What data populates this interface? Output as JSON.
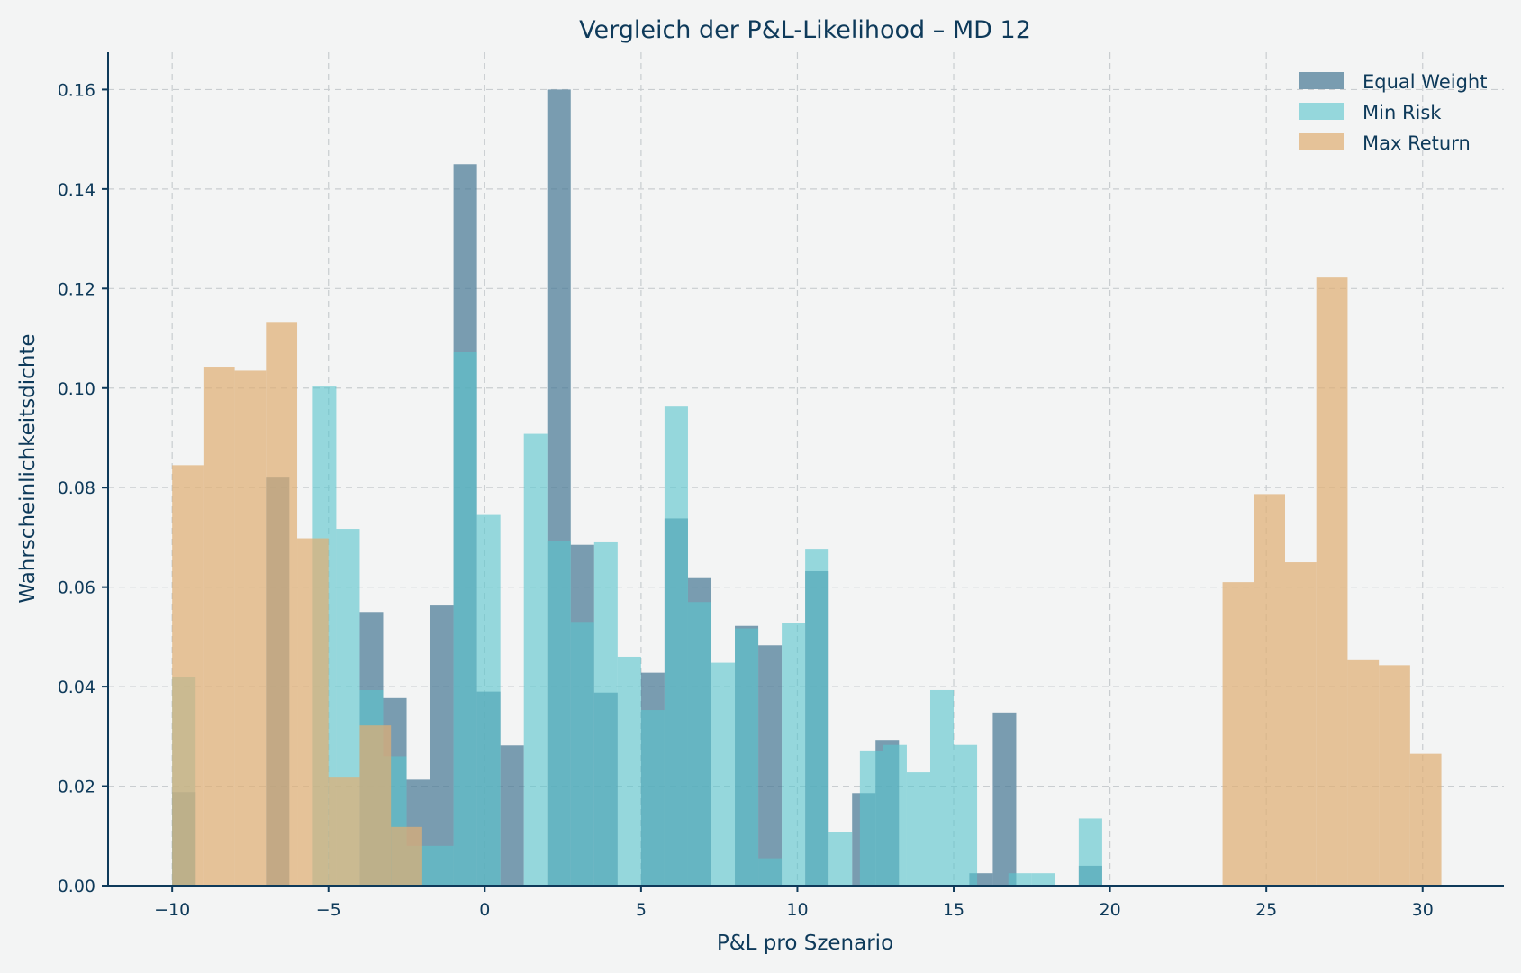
{
  "chart_data": {
    "type": "bar",
    "title": "Vergleich der P&L-Likelihood – MD 12",
    "xlabel": "P&L pro Szenario",
    "ylabel": "Wahrscheinlichkeitsdichte",
    "xlim": [
      -12.05,
      32.6
    ],
    "ylim": [
      0,
      0.1675
    ],
    "xticks": [
      -10,
      -5,
      0,
      5,
      10,
      15,
      20,
      25,
      30
    ],
    "xtick_labels": [
      "−10",
      "−5",
      "0",
      "5",
      "10",
      "15",
      "20",
      "25",
      "30"
    ],
    "yticks": [
      0,
      0.02,
      0.04,
      0.06,
      0.08,
      0.1,
      0.12,
      0.14,
      0.16
    ],
    "ytick_labels": [
      "0.00",
      "0.02",
      "0.04",
      "0.06",
      "0.08",
      "0.10",
      "0.12",
      "0.14",
      "0.16"
    ],
    "grid": true,
    "legend_position": "top-right",
    "series": [
      {
        "name": "Equal Weight",
        "color": "#4a7a96",
        "opacity": 0.72,
        "bins": [
          {
            "x0": -10.0,
            "x1": -9.25,
            "y": 0.0188
          },
          {
            "x0": -7.0,
            "x1": -6.25,
            "y": 0.082
          },
          {
            "x0": -4.0,
            "x1": -3.25,
            "y": 0.055
          },
          {
            "x0": -3.25,
            "x1": -2.5,
            "y": 0.0377
          },
          {
            "x0": -2.5,
            "x1": -1.75,
            "y": 0.0213
          },
          {
            "x0": -1.75,
            "x1": -1.0,
            "y": 0.0563
          },
          {
            "x0": -1.0,
            "x1": -0.25,
            "y": 0.145
          },
          {
            "x0": -0.25,
            "x1": 0.5,
            "y": 0.039
          },
          {
            "x0": 0.5,
            "x1": 1.25,
            "y": 0.0282
          },
          {
            "x0": 2.0,
            "x1": 2.75,
            "y": 0.16
          },
          {
            "x0": 2.75,
            "x1": 3.5,
            "y": 0.0685
          },
          {
            "x0": 3.5,
            "x1": 4.25,
            "y": 0.0388
          },
          {
            "x0": 5.0,
            "x1": 5.75,
            "y": 0.0428
          },
          {
            "x0": 5.75,
            "x1": 6.5,
            "y": 0.0738
          },
          {
            "x0": 6.5,
            "x1": 7.25,
            "y": 0.0618
          },
          {
            "x0": 8.0,
            "x1": 8.75,
            "y": 0.0522
          },
          {
            "x0": 8.75,
            "x1": 9.5,
            "y": 0.0483
          },
          {
            "x0": 10.25,
            "x1": 11.0,
            "y": 0.0632
          },
          {
            "x0": 11.75,
            "x1": 12.5,
            "y": 0.0186
          },
          {
            "x0": 12.5,
            "x1": 13.25,
            "y": 0.0293
          },
          {
            "x0": 15.5,
            "x1": 16.25,
            "y": 0.0025
          },
          {
            "x0": 16.25,
            "x1": 17.0,
            "y": 0.0348
          },
          {
            "x0": 19.0,
            "x1": 19.75,
            "y": 0.004
          }
        ]
      },
      {
        "name": "Min Risk",
        "color": "#5ac5cd",
        "opacity": 0.62,
        "bins": [
          {
            "x0": -10.0,
            "x1": -9.25,
            "y": 0.042
          },
          {
            "x0": -5.5,
            "x1": -4.75,
            "y": 0.1003
          },
          {
            "x0": -4.75,
            "x1": -4.0,
            "y": 0.0717
          },
          {
            "x0": -4.0,
            "x1": -3.25,
            "y": 0.0393
          },
          {
            "x0": -3.25,
            "x1": -2.5,
            "y": 0.026
          },
          {
            "x0": -2.5,
            "x1": -1.75,
            "y": 0.008
          },
          {
            "x0": -1.75,
            "x1": -1.0,
            "y": 0.008
          },
          {
            "x0": -1.0,
            "x1": -0.25,
            "y": 0.1072
          },
          {
            "x0": -0.25,
            "x1": 0.5,
            "y": 0.0745
          },
          {
            "x0": 0.5,
            "x1": 1.25,
            "y": 0.0
          },
          {
            "x0": 1.25,
            "x1": 2.0,
            "y": 0.0908
          },
          {
            "x0": 2.0,
            "x1": 2.75,
            "y": 0.0693
          },
          {
            "x0": 2.75,
            "x1": 3.5,
            "y": 0.053
          },
          {
            "x0": 3.5,
            "x1": 4.25,
            "y": 0.069
          },
          {
            "x0": 4.25,
            "x1": 5.0,
            "y": 0.046
          },
          {
            "x0": 5.0,
            "x1": 5.75,
            "y": 0.0353
          },
          {
            "x0": 5.75,
            "x1": 6.5,
            "y": 0.0963
          },
          {
            "x0": 6.5,
            "x1": 7.25,
            "y": 0.057
          },
          {
            "x0": 7.25,
            "x1": 8.0,
            "y": 0.0448
          },
          {
            "x0": 8.0,
            "x1": 8.75,
            "y": 0.0517
          },
          {
            "x0": 8.75,
            "x1": 9.5,
            "y": 0.0055
          },
          {
            "x0": 9.5,
            "x1": 10.25,
            "y": 0.0527
          },
          {
            "x0": 10.25,
            "x1": 11.0,
            "y": 0.0677
          },
          {
            "x0": 11.0,
            "x1": 11.75,
            "y": 0.0107
          },
          {
            "x0": 12.0,
            "x1": 12.75,
            "y": 0.027
          },
          {
            "x0": 12.75,
            "x1": 13.5,
            "y": 0.0283
          },
          {
            "x0": 13.5,
            "x1": 14.25,
            "y": 0.0228
          },
          {
            "x0": 14.25,
            "x1": 15.0,
            "y": 0.0393
          },
          {
            "x0": 15.0,
            "x1": 15.75,
            "y": 0.0283
          },
          {
            "x0": 16.75,
            "x1": 17.5,
            "y": 0.0025
          },
          {
            "x0": 17.5,
            "x1": 18.25,
            "y": 0.0025
          },
          {
            "x0": 19.0,
            "x1": 19.75,
            "y": 0.0135
          }
        ]
      },
      {
        "name": "Max Return",
        "color": "#dfae74",
        "opacity": 0.72,
        "bins": [
          {
            "x0": -10.0,
            "x1": -9.0,
            "y": 0.0845
          },
          {
            "x0": -9.0,
            "x1": -8.0,
            "y": 0.1043
          },
          {
            "x0": -8.0,
            "x1": -7.0,
            "y": 0.1035
          },
          {
            "x0": -7.0,
            "x1": -6.0,
            "y": 0.1133
          },
          {
            "x0": -6.0,
            "x1": -5.0,
            "y": 0.0698
          },
          {
            "x0": -5.0,
            "x1": -4.0,
            "y": 0.0217
          },
          {
            "x0": -4.0,
            "x1": -3.0,
            "y": 0.0322
          },
          {
            "x0": -3.0,
            "x1": -2.0,
            "y": 0.0118
          },
          {
            "x0": 23.6,
            "x1": 24.6,
            "y": 0.061
          },
          {
            "x0": 24.6,
            "x1": 25.6,
            "y": 0.0787
          },
          {
            "x0": 25.6,
            "x1": 26.6,
            "y": 0.065
          },
          {
            "x0": 26.6,
            "x1": 27.6,
            "y": 0.1222
          },
          {
            "x0": 27.6,
            "x1": 28.6,
            "y": 0.0453
          },
          {
            "x0": 28.6,
            "x1": 29.6,
            "y": 0.0443
          },
          {
            "x0": 29.6,
            "x1": 30.6,
            "y": 0.0265
          }
        ]
      }
    ]
  }
}
